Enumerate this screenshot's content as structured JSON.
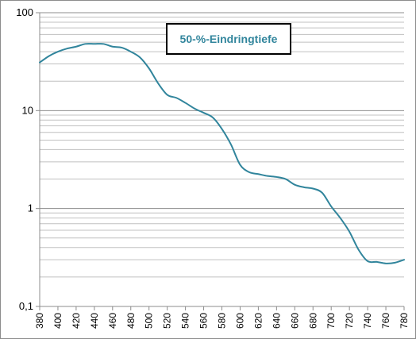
{
  "chart_data": {
    "type": "line",
    "title": "50-%-Eindringtiefe",
    "xlabel": "",
    "ylabel": "",
    "yscale": "log",
    "ylim": [
      0.1,
      100
    ],
    "xlim": [
      380,
      780
    ],
    "grid": true,
    "legend": "none",
    "line_color": "#31859c",
    "grid_color": "#c0c0c0",
    "y_ticks": [
      {
        "value": 0.1,
        "label": "0,1"
      },
      {
        "value": 1,
        "label": "1"
      },
      {
        "value": 10,
        "label": "10"
      },
      {
        "value": 100,
        "label": "100"
      }
    ],
    "x_ticks": [
      "380",
      "400",
      "420",
      "440",
      "460",
      "480",
      "500",
      "520",
      "540",
      "560",
      "580",
      "600",
      "620",
      "640",
      "660",
      "680",
      "700",
      "720",
      "740",
      "760",
      "780"
    ],
    "series": [
      {
        "x": [
          380,
          390,
          400,
          410,
          420,
          430,
          440,
          450,
          460,
          470,
          480,
          490,
          500,
          510,
          520,
          530,
          540,
          550,
          560,
          570,
          580,
          590,
          600,
          610,
          620,
          630,
          640,
          650,
          660,
          670,
          680,
          690,
          700,
          710,
          720,
          730,
          740,
          750,
          760,
          770,
          780
        ],
        "y": [
          31,
          36,
          40,
          43,
          45,
          48,
          48,
          48,
          45,
          44,
          40,
          35,
          27,
          19,
          14.5,
          13.5,
          12,
          10.5,
          9.5,
          8.5,
          6.5,
          4.5,
          2.8,
          2.35,
          2.25,
          2.15,
          2.1,
          2,
          1.75,
          1.65,
          1.6,
          1.45,
          1.05,
          0.8,
          0.58,
          0.38,
          0.29,
          0.285,
          0.275,
          0.28,
          0.3
        ]
      }
    ]
  }
}
